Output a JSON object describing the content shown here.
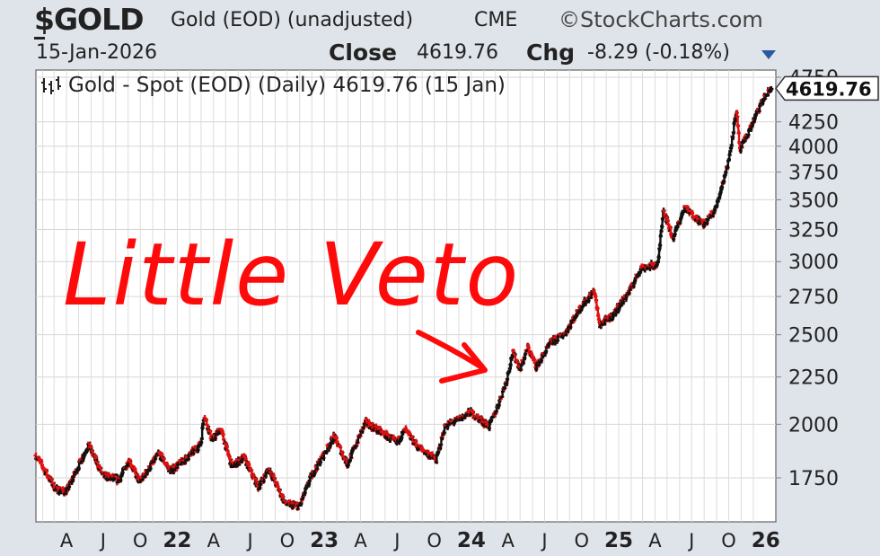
{
  "header": {
    "symbol": "$GOLD",
    "description": "Gold (EOD) (unadjusted)",
    "exchange": "CME",
    "brand": "©StockCharts.com",
    "date": "15-Jan-2026",
    "close_label": "Close",
    "close_value": "4619.76",
    "chg_label": "Chg",
    "chg_value": "-8.29 (-0.18%)"
  },
  "legend": {
    "icon": "ohlc-bars-icon",
    "text": "Gold - Spot (EOD) (Daily) 4619.76 (15 Jan)"
  },
  "annotation": {
    "text": "Little Veto",
    "color": "#ff0a0a"
  },
  "chart_data": {
    "type": "line",
    "style": "ohlc-bars",
    "scale": "log",
    "grid": true,
    "legend_position": "top-left",
    "up_color": "#111111",
    "down_color": "#e01010",
    "ylim": [
      1600,
      4750
    ],
    "ytick_labels": [
      "4750",
      "4250",
      "4000",
      "3750",
      "3500",
      "3250",
      "3000",
      "2750",
      "2500",
      "2250",
      "2000",
      "1750"
    ],
    "ytick_values": [
      4750,
      4250,
      4000,
      3750,
      3500,
      3250,
      3000,
      2750,
      2500,
      2250,
      2000,
      1750
    ],
    "last_price_label": "4619.76",
    "xtick_labels": [
      "A",
      "J",
      "O",
      "22",
      "A",
      "J",
      "O",
      "23",
      "A",
      "J",
      "O",
      "24",
      "A",
      "J",
      "O",
      "25",
      "A",
      "J",
      "O",
      "26"
    ],
    "xtick_dates": [
      "2021-04-01",
      "2021-07-01",
      "2021-10-01",
      "2022-01-01",
      "2022-04-01",
      "2022-07-01",
      "2022-10-01",
      "2023-01-01",
      "2023-04-01",
      "2023-07-01",
      "2023-10-01",
      "2024-01-01",
      "2024-04-01",
      "2024-07-01",
      "2024-10-01",
      "2025-01-01",
      "2025-04-01",
      "2025-07-01",
      "2025-10-01",
      "2026-01-01"
    ],
    "xlim": [
      "2021-01-15",
      "2026-01-26"
    ],
    "series": [
      {
        "x": [
          "2021-01-15",
          "2021-03-05",
          "2021-03-31",
          "2021-05-25",
          "2021-06-30",
          "2021-08-09",
          "2021-09-03",
          "2021-09-29",
          "2021-11-16",
          "2021-12-15",
          "2022-01-25",
          "2022-02-28",
          "2022-03-08",
          "2022-03-28",
          "2022-04-18",
          "2022-05-16",
          "2022-06-15",
          "2022-07-21",
          "2022-08-16",
          "2022-09-26",
          "2022-10-31",
          "2022-11-30",
          "2023-01-25",
          "2023-02-27",
          "2023-04-13",
          "2023-05-30",
          "2023-06-29",
          "2023-07-20",
          "2023-08-21",
          "2023-09-29",
          "2023-10-06",
          "2023-10-27",
          "2023-12-04",
          "2023-12-29",
          "2024-02-14",
          "2024-03-04",
          "2024-03-28",
          "2024-04-12",
          "2024-05-01",
          "2024-05-20",
          "2024-06-10",
          "2024-07-16",
          "2024-08-20",
          "2024-09-26",
          "2024-11-01",
          "2024-11-14",
          "2024-12-16",
          "2025-01-30",
          "2025-02-24",
          "2025-04-08",
          "2025-04-21",
          "2025-05-15",
          "2025-06-13",
          "2025-07-31",
          "2025-08-29",
          "2025-09-30",
          "2025-10-20",
          "2025-10-28",
          "2025-11-14",
          "2025-12-26",
          "2026-01-15"
        ],
        "values": [
          1850,
          1700,
          1690,
          1900,
          1760,
          1740,
          1830,
          1730,
          1860,
          1780,
          1840,
          1905,
          2050,
          1920,
          1980,
          1800,
          1840,
          1710,
          1790,
          1640,
          1630,
          1760,
          1940,
          1810,
          2010,
          1950,
          1910,
          1970,
          1890,
          1840,
          1830,
          1990,
          2030,
          2060,
          1990,
          2080,
          2230,
          2390,
          2300,
          2420,
          2310,
          2450,
          2510,
          2670,
          2790,
          2560,
          2620,
          2800,
          2950,
          2980,
          3420,
          3180,
          3430,
          3290,
          3420,
          3850,
          4380,
          3950,
          4100,
          4500,
          4619.76
        ]
      }
    ]
  }
}
